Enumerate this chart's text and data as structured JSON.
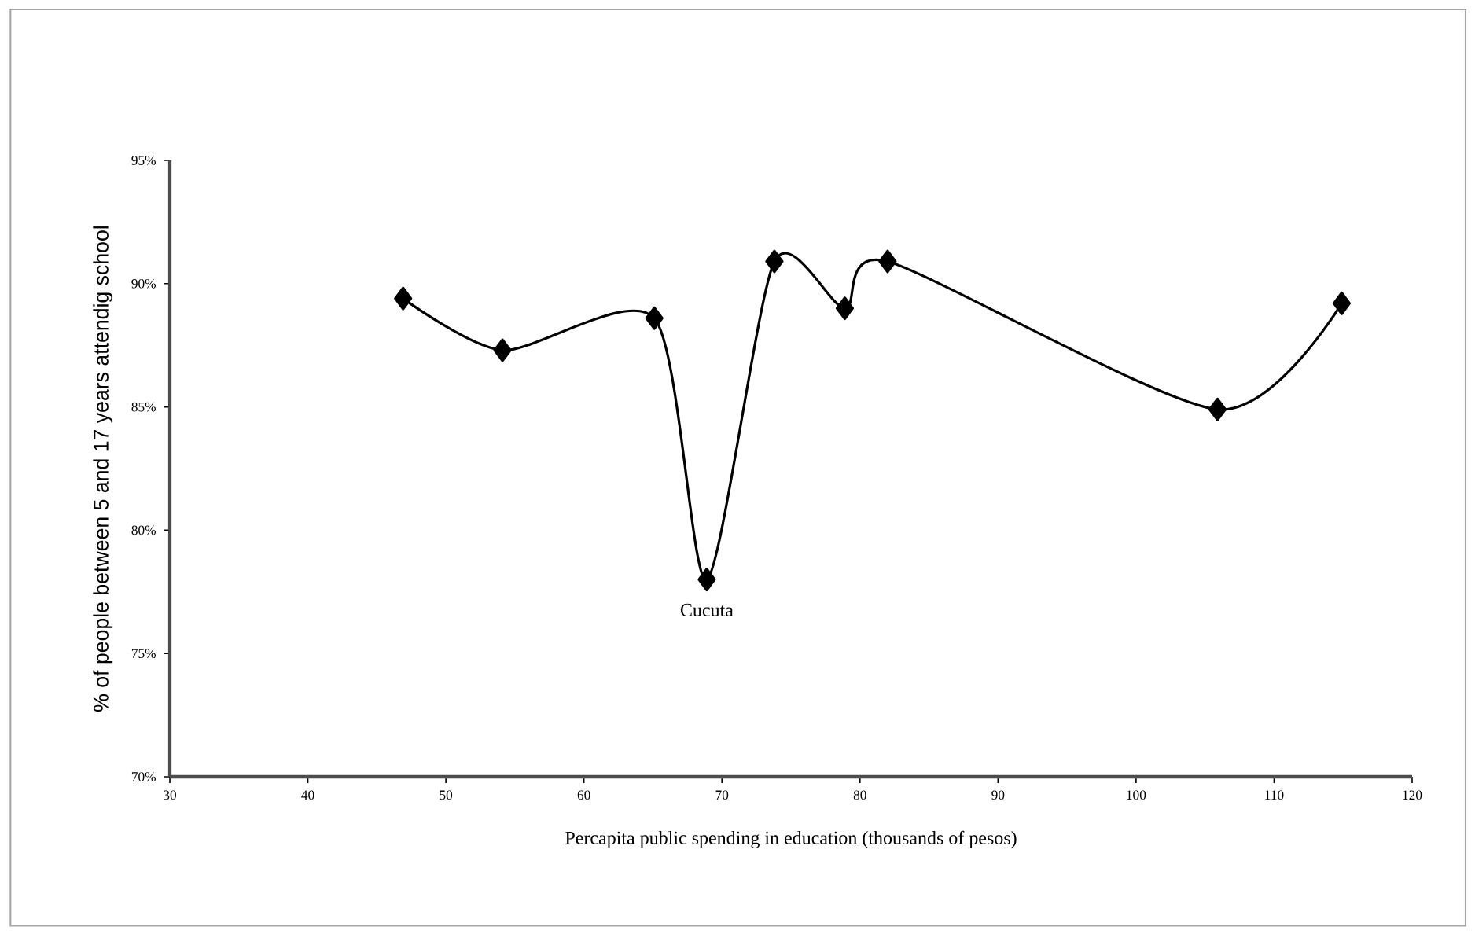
{
  "chart_data": {
    "type": "line",
    "xlabel": "Percapita public spending in education (thousands of pesos)",
    "ylabel": "% of people between 5 and 17 years attendig school",
    "x": [
      46.9,
      54.1,
      65.1,
      68.9,
      73.8,
      78.9,
      82.0,
      105.9,
      114.9
    ],
    "series": [
      {
        "color": "#000000",
        "values": [
          89.4,
          87.3,
          88.6,
          78.0,
          90.9,
          89.0,
          90.9,
          84.9,
          89.2
        ]
      }
    ],
    "xlim": [
      30,
      120
    ],
    "xticks": [
      30,
      40,
      50,
      60,
      70,
      80,
      90,
      100,
      110,
      120
    ],
    "ylim": [
      70,
      95
    ],
    "yticks": [
      {
        "value": 70,
        "label": "70%"
      },
      {
        "value": 75,
        "label": "75%"
      },
      {
        "value": 80,
        "label": "80%"
      },
      {
        "value": 85,
        "label": "85%"
      },
      {
        "value": 90,
        "label": "90%"
      },
      {
        "value": 95,
        "label": "95%"
      }
    ],
    "annotations": [
      {
        "text": "Cucuta",
        "x": 68.9,
        "y": 78.0
      }
    ],
    "marker": "diamond",
    "line_style": "solid"
  }
}
